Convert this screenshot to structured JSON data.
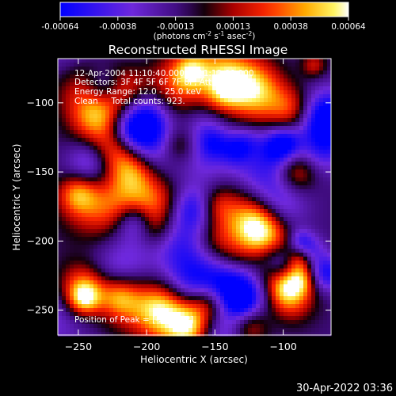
{
  "chart_data": {
    "type": "heatmap",
    "title": "Reconstructed RHESSI Image",
    "xlabel": "Heliocentric X (arcsec)",
    "ylabel": "Heliocentric Y (arcsec)",
    "xlim": [
      -265,
      -65
    ],
    "ylim": [
      -268,
      -68
    ],
    "xticks": [
      -250,
      -200,
      -150,
      -100
    ],
    "yticks": [
      -250,
      -200,
      -150,
      -100
    ],
    "colorbar": {
      "ticks": [
        "-0.00064",
        "-0.00038",
        "-0.00013",
        "0.00013",
        "0.00038",
        "0.00064"
      ],
      "min": -0.00064,
      "max": 0.00064,
      "unit_text": "(photons cm",
      "unit_exp1": "-2",
      "unit_mid": " s",
      "unit_exp2": "-1",
      "unit_mid2": " asec",
      "unit_exp3": "-2",
      "unit_end": ")"
    },
    "annotations": [
      "12-Apr-2004 11:10:40.000 to 11:12:00.000",
      "Detectors: 3F 4F 5F 6F 7F 8F, Att 0",
      "Energy Range: 12.0 - 25.0 keV",
      "Clean     Total counts: 923."
    ],
    "peak_text": "Position of Peak = [-216,-92]",
    "timestamp": "30-Apr-2022 03:36",
    "peak": [
      -216,
      -92
    ]
  }
}
